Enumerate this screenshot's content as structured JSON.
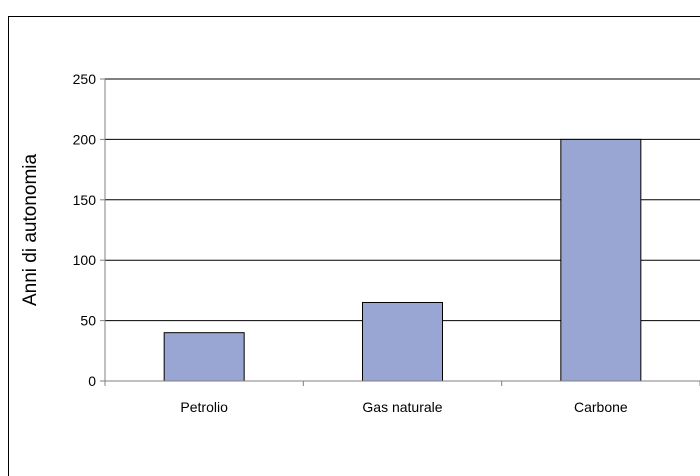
{
  "chart_data": {
    "type": "bar",
    "categories": [
      "Petrolio",
      "Gas naturale",
      "Carbone"
    ],
    "values": [
      40,
      65,
      200
    ],
    "title": "",
    "xlabel": "",
    "ylabel": "Anni di autonomia",
    "ylim": [
      0,
      250
    ],
    "yticks": [
      0,
      50,
      100,
      150,
      200,
      250
    ],
    "grid": true,
    "legend": "none",
    "colors": {
      "bar_fill": "#99a6d4",
      "bar_stroke": "#000000",
      "gridline": "#000000",
      "axis": "#808080"
    }
  }
}
